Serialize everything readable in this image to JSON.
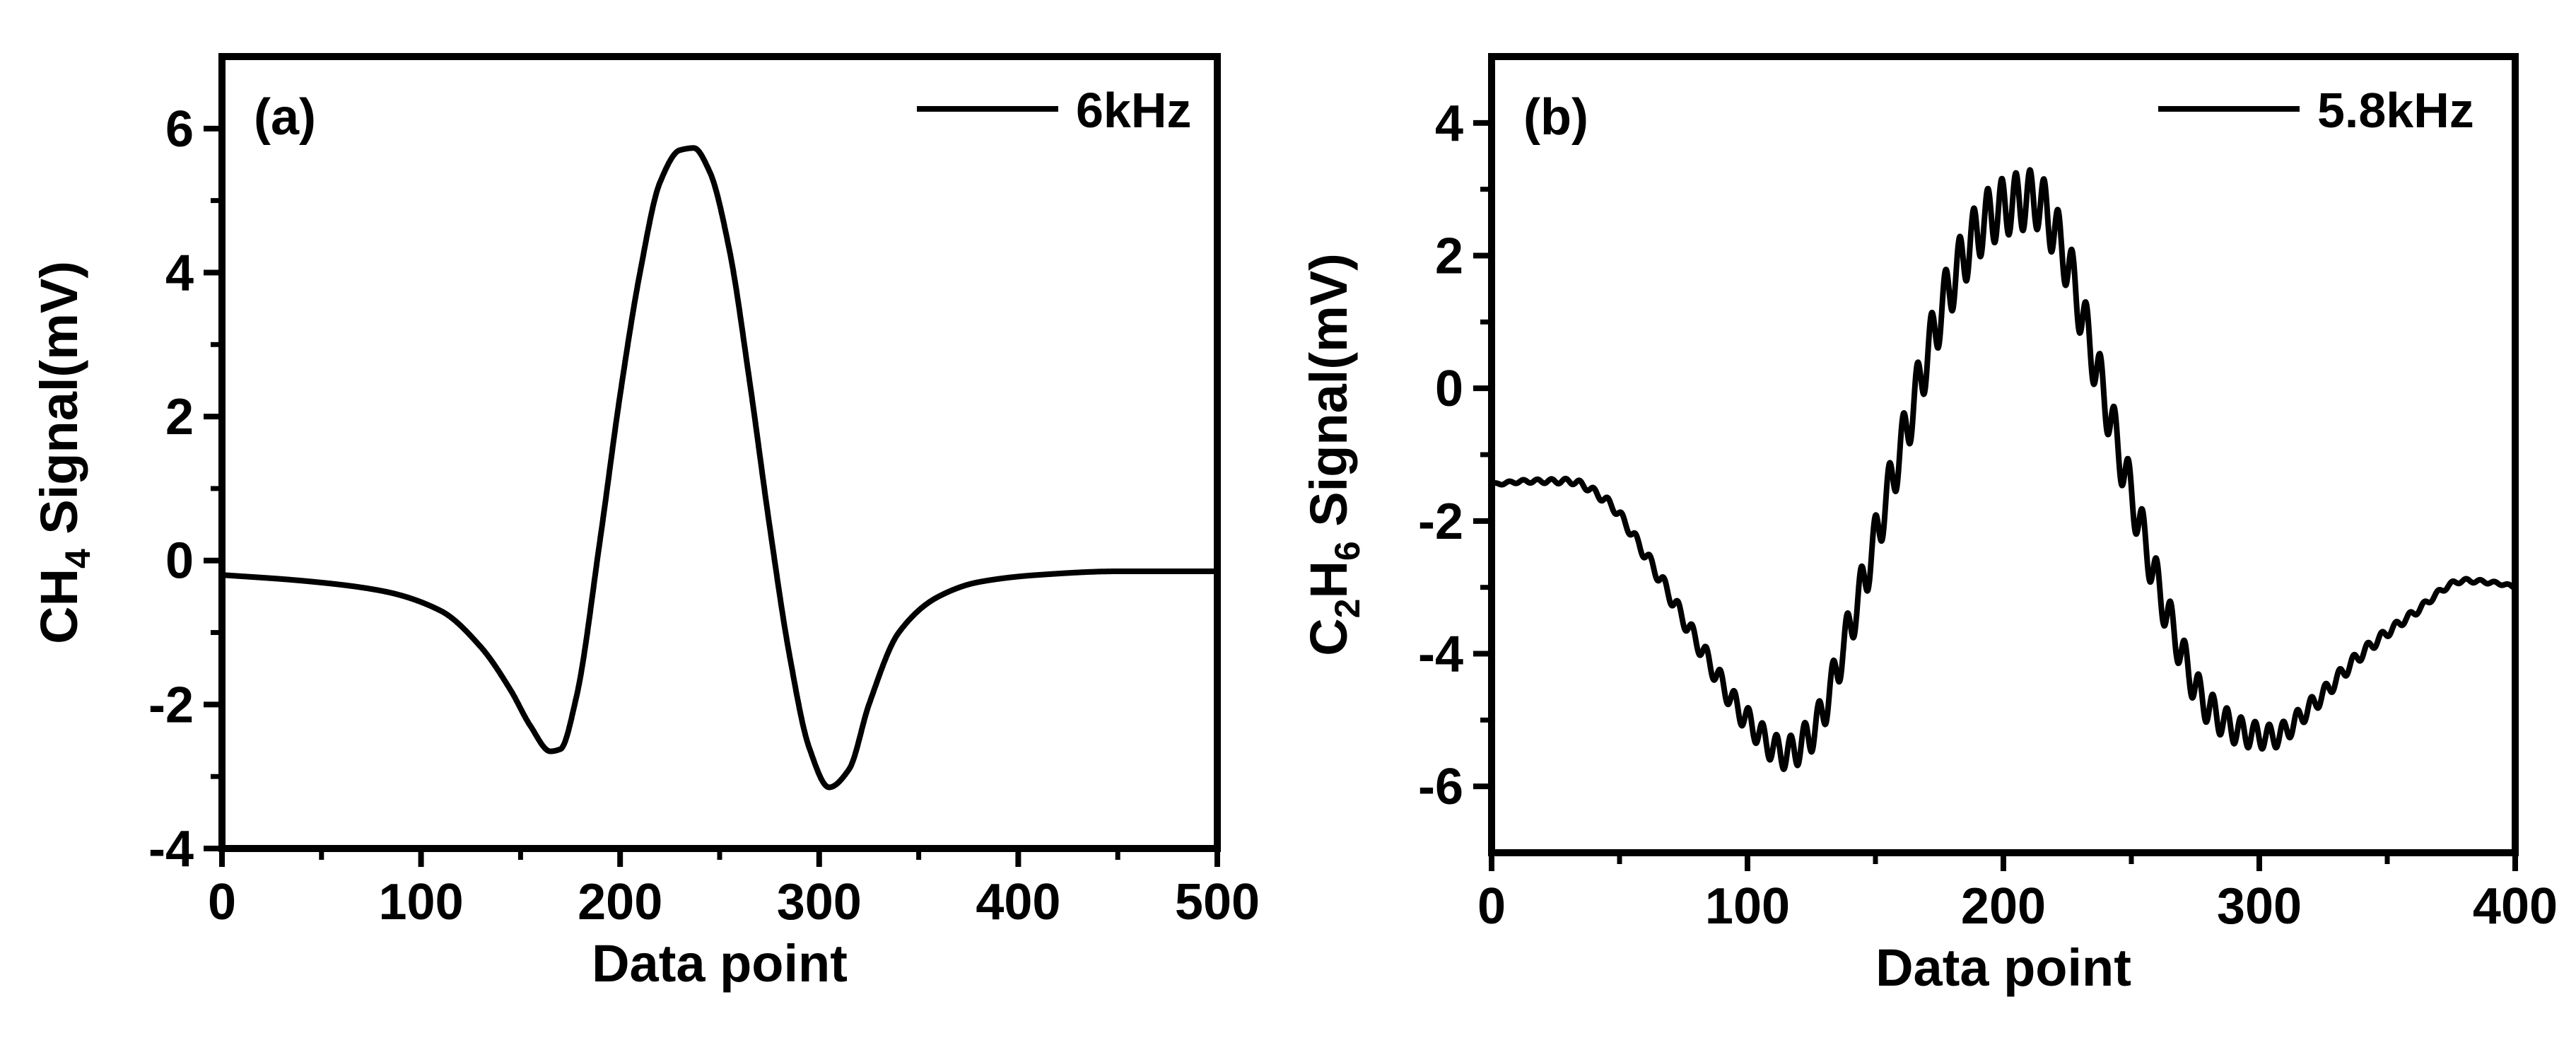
{
  "chart_data": [
    {
      "type": "line",
      "panel_label": "(a)",
      "xlabel": "Data point",
      "ylabel_parts": [
        "CH",
        "4",
        " Signal(mV)"
      ],
      "xlim": [
        0,
        500
      ],
      "ylim": [
        -4,
        7
      ],
      "xticks": [
        0,
        100,
        200,
        300,
        400,
        500
      ],
      "yticks": [
        -4,
        -2,
        0,
        2,
        4,
        6
      ],
      "x_minor_step": 50,
      "y_minor_step": 1,
      "legend": {
        "label": "6kHz",
        "position": "top-right"
      },
      "series": [
        {
          "name": "6kHz",
          "ripple": {
            "amplitude": 0,
            "period": 1
          },
          "x": [
            0,
            40,
            80,
            110,
            130,
            145,
            155,
            165,
            170,
            178,
            190,
            200,
            210,
            220,
            230,
            237,
            245,
            255,
            265,
            275,
            285,
            295,
            305,
            315,
            325,
            340,
            360,
            380,
            410,
            450,
            500
          ],
          "y": [
            -0.2,
            -0.28,
            -0.42,
            -0.7,
            -1.2,
            -1.8,
            -2.3,
            -2.65,
            -2.62,
            -1.9,
            0.3,
            2.3,
            4.0,
            5.25,
            5.7,
            5.73,
            5.4,
            4.3,
            2.5,
            0.5,
            -1.3,
            -2.6,
            -3.15,
            -2.9,
            -2.0,
            -1.0,
            -0.5,
            -0.3,
            -0.2,
            -0.15,
            -0.15
          ]
        }
      ]
    },
    {
      "type": "line",
      "panel_label": "(b)",
      "xlabel": "Data point",
      "ylabel_parts": [
        "C",
        "2",
        "H",
        "6",
        " Signal(mV)"
      ],
      "xlim": [
        0,
        400
      ],
      "ylim": [
        -7,
        5
      ],
      "xticks": [
        0,
        100,
        200,
        300,
        400
      ],
      "yticks": [
        -6,
        -4,
        -2,
        0,
        2,
        4
      ],
      "x_minor_step": 50,
      "y_minor_step": 1,
      "legend": {
        "label": "5.8kHz",
        "position": "top-right"
      },
      "series": [
        {
          "name": "5.8kHz",
          "ripple": {
            "amplitude": 0.45,
            "period": 5.5
          },
          "x": [
            0,
            15,
            30,
            45,
            60,
            80,
            100,
            115,
            125,
            140,
            160,
            180,
            195,
            205,
            212,
            222,
            235,
            250,
            265,
            280,
            295,
            305,
            320,
            340,
            360,
            380,
            395,
            400
          ],
          "y": [
            -1.45,
            -1.4,
            -1.4,
            -1.7,
            -2.5,
            -3.8,
            -5.0,
            -5.5,
            -5.2,
            -3.6,
            -0.9,
            1.6,
            2.6,
            2.8,
            2.85,
            2.2,
            0.5,
            -1.6,
            -3.5,
            -4.8,
            -5.2,
            -5.25,
            -4.8,
            -4.0,
            -3.4,
            -2.9,
            -2.95,
            -3.0
          ]
        }
      ]
    }
  ]
}
